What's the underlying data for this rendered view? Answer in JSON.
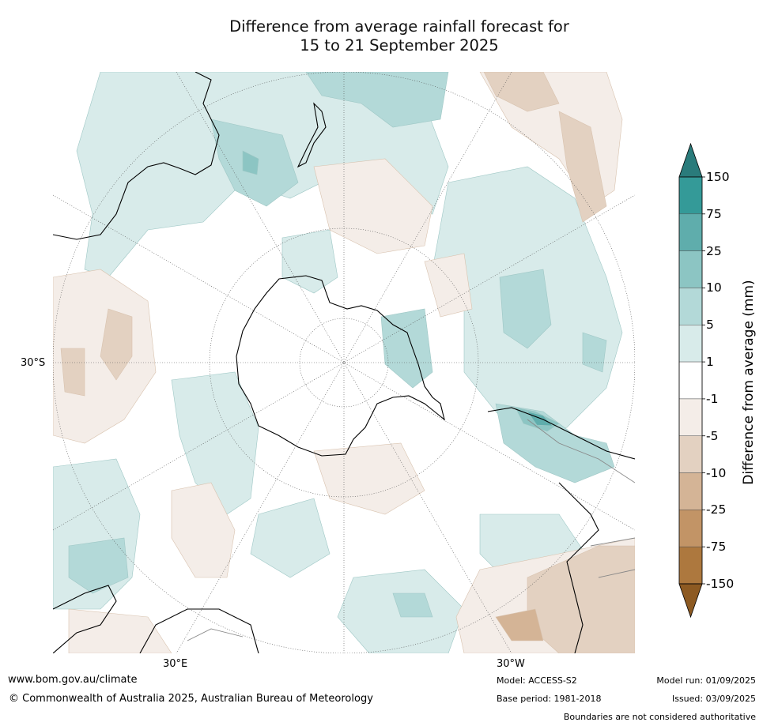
{
  "title_line1": "Difference from average rainfall forecast for",
  "title_line2": "15 to 21 September 2025",
  "map": {
    "projection": "south-polar-stereographic",
    "lat_label_left": "30°S",
    "lon_label_left": "30°E",
    "lon_label_right": "30°W"
  },
  "colorbar": {
    "title": "Difference from average (mm)",
    "ticks": [
      "150",
      "75",
      "25",
      "10",
      "5",
      "1",
      "-1",
      "-5",
      "-10",
      "-25",
      "-75",
      "-150"
    ],
    "bands": [
      {
        "range": "> 150",
        "color": "#2a7b7b"
      },
      {
        "range": "75 to 150",
        "color": "#349a98"
      },
      {
        "range": "25 to 75",
        "color": "#5fadac"
      },
      {
        "range": "10 to 25",
        "color": "#8cc5c3"
      },
      {
        "range": "5 to 10",
        "color": "#b3d9d8"
      },
      {
        "range": "1 to 5",
        "color": "#d8ebea"
      },
      {
        "range": "-1 to 1",
        "color": "#ffffff"
      },
      {
        "range": "-5 to -1",
        "color": "#f4ede8"
      },
      {
        "range": "-10 to -5",
        "color": "#e3d1c1"
      },
      {
        "range": "-25 to -10",
        "color": "#d4b496"
      },
      {
        "range": "-75 to -25",
        "color": "#c29466"
      },
      {
        "range": "-150 to -75",
        "color": "#ad783e"
      },
      {
        "range": "< -150",
        "color": "#8d5a22"
      }
    ]
  },
  "footer": {
    "website": "www.bom.gov.au/climate",
    "copyright": "© Commonwealth of Australia 2025, Australian Bureau of Meteorology",
    "model": "Model: ACCESS-S2",
    "base_period": "Base period: 1981-2018",
    "model_run": "Model run: 01/09/2025",
    "issued": "Issued: 03/09/2025",
    "disclaimer": "Boundaries are not considered authoritative"
  }
}
